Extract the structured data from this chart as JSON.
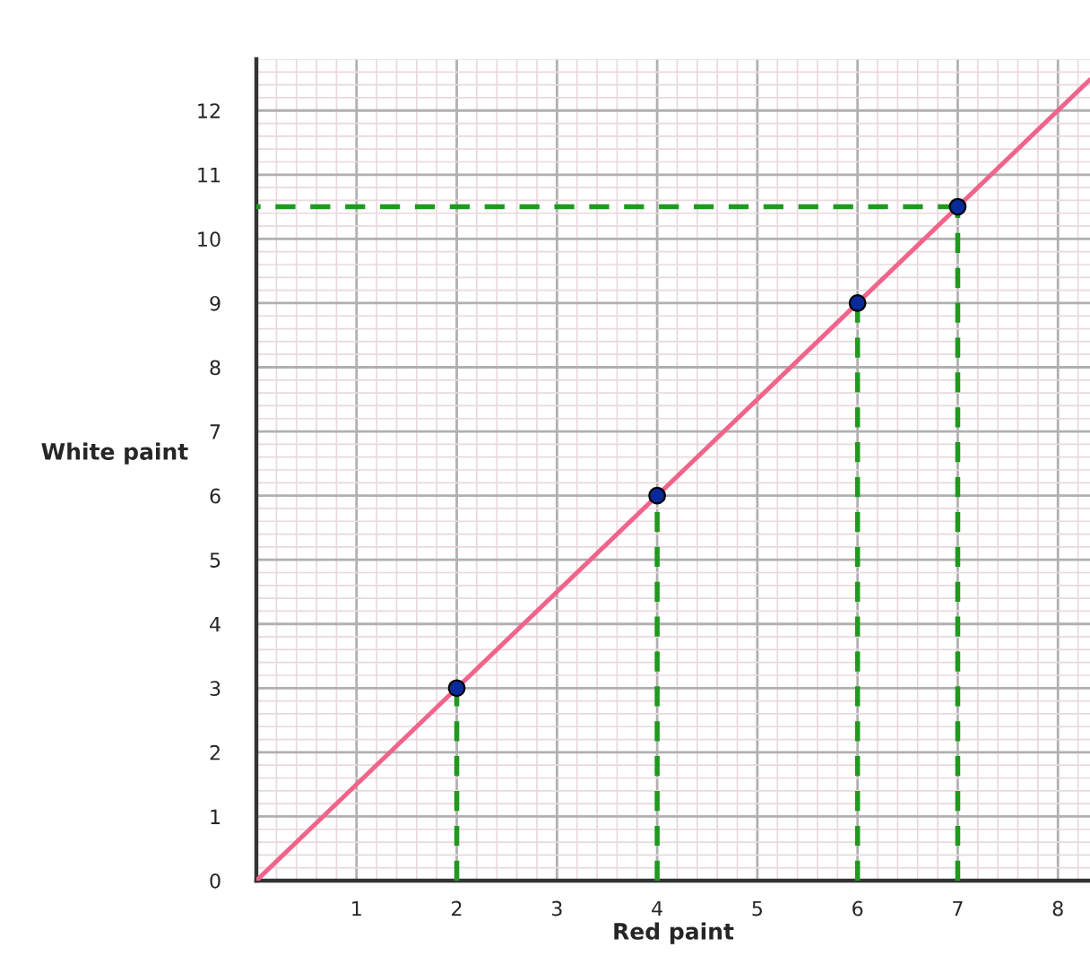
{
  "chart_data": {
    "type": "line",
    "xlabel": "Red paint",
    "ylabel": "White paint",
    "xlim": [
      0,
      8.32
    ],
    "ylim": [
      0,
      12.8
    ],
    "xticks": [
      {
        "value": 0,
        "label": null
      },
      1,
      2,
      3,
      4,
      5,
      6,
      7,
      8
    ],
    "yticks": [
      0,
      1,
      2,
      3,
      4,
      5,
      6,
      7,
      8,
      9,
      10,
      11,
      12
    ],
    "grid": true,
    "legend": false,
    "series": [
      {
        "color": "#f0648c",
        "x": [
          0,
          8.32
        ],
        "values": [
          0,
          12.48
        ]
      },
      {
        "color": "#1e9a1e",
        "line_style": "dashed",
        "x": [
          2,
          2
        ],
        "values": [
          0,
          3
        ]
      },
      {
        "color": "#1e9a1e",
        "line_style": "dashed",
        "x": [
          4,
          4
        ],
        "values": [
          0,
          6
        ]
      },
      {
        "color": "#1e9a1e",
        "line_style": "dashed",
        "x": [
          6,
          6
        ],
        "values": [
          0,
          9
        ]
      },
      {
        "color": "#1e9a1e",
        "line_style": "dashed",
        "x": [
          7,
          7
        ],
        "values": [
          0,
          10.5
        ]
      },
      {
        "color": "#1e9a1e",
        "line_style": "dashed",
        "x": [
          7,
          0
        ],
        "values": [
          10.5,
          10.5
        ]
      },
      {
        "type": "scatter",
        "color": "#0a2a9a",
        "marker": "circle",
        "x": [
          2,
          4,
          6,
          7
        ],
        "values": [
          3,
          6,
          9,
          10.5
        ]
      }
    ]
  }
}
